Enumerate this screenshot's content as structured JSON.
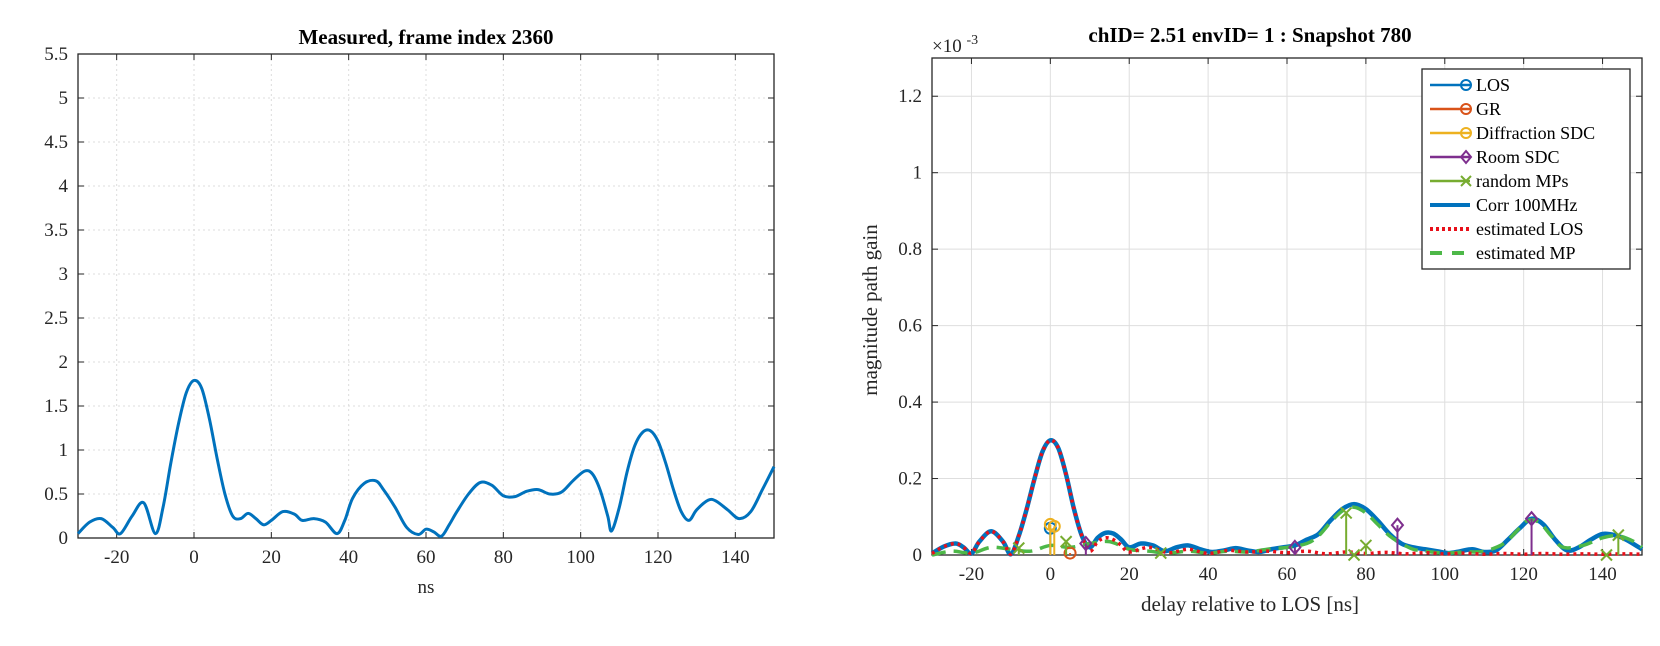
{
  "chart_data": [
    {
      "type": "line",
      "title": "Measured, frame index 2360",
      "xlabel": "ns",
      "ylabel": "",
      "xlim": [
        -30,
        150
      ],
      "ylim": [
        0,
        5.5
      ],
      "xticks": [
        -20,
        0,
        20,
        40,
        60,
        80,
        100,
        120,
        140
      ],
      "xtick_labels": [
        "-20",
        "0",
        "20",
        "40",
        "60",
        "80",
        "100",
        "120",
        "140"
      ],
      "yticks": [
        0,
        0.5,
        1,
        1.5,
        2,
        2.5,
        3,
        3.5,
        4,
        4.5,
        5,
        5.5
      ],
      "ytick_labels": [
        "0",
        "0.5",
        "1",
        "1.5",
        "2",
        "2.5",
        "3",
        "3.5",
        "4",
        "4.5",
        "5",
        "5.5"
      ],
      "grid": true,
      "colors": {
        "line": "#0072BD",
        "grid": "#dcdcdc",
        "axis": "#262626"
      },
      "series": [
        {
          "x": [
            -30,
            -27,
            -24,
            -21,
            -19,
            -16,
            -13,
            -10,
            -8,
            -6,
            -4,
            -2,
            0,
            2,
            4,
            6,
            8,
            10,
            12,
            14,
            16,
            18,
            20,
            23,
            26,
            28,
            31,
            34,
            37,
            39,
            41,
            44,
            47,
            49,
            52,
            55,
            58,
            60,
            62,
            64,
            66,
            68,
            71,
            74,
            77,
            80,
            83,
            86,
            89,
            92,
            95,
            98,
            101,
            103,
            105,
            107,
            108,
            110,
            112,
            114,
            116,
            118,
            120,
            122,
            124,
            126,
            128,
            130,
            133,
            135,
            138,
            141,
            144,
            147,
            150
          ],
          "y": [
            0.05,
            0.18,
            0.22,
            0.12,
            0.05,
            0.25,
            0.4,
            0.05,
            0.35,
            0.85,
            1.3,
            1.65,
            1.79,
            1.7,
            1.35,
            0.9,
            0.5,
            0.25,
            0.22,
            0.28,
            0.22,
            0.15,
            0.2,
            0.3,
            0.27,
            0.2,
            0.22,
            0.18,
            0.05,
            0.2,
            0.45,
            0.62,
            0.65,
            0.55,
            0.35,
            0.12,
            0.04,
            0.1,
            0.07,
            0.02,
            0.15,
            0.3,
            0.5,
            0.63,
            0.6,
            0.48,
            0.47,
            0.53,
            0.55,
            0.5,
            0.52,
            0.65,
            0.76,
            0.73,
            0.55,
            0.25,
            0.08,
            0.35,
            0.75,
            1.05,
            1.2,
            1.22,
            1.1,
            0.85,
            0.55,
            0.3,
            0.2,
            0.32,
            0.43,
            0.42,
            0.32,
            0.22,
            0.3,
            0.55,
            0.81
          ]
        }
      ]
    },
    {
      "type": "line",
      "title": "chID= 2.51 envID= 1 : Snapshot 780",
      "xlabel": "delay relative to LOS [ns]",
      "ylabel": "magnitude path gain",
      "y_exponent_label": "×10",
      "y_exponent_power": "-3",
      "y_scale": "1e-3",
      "xlim": [
        -30,
        150
      ],
      "ylim": [
        0,
        1.3
      ],
      "xticks": [
        -20,
        0,
        20,
        40,
        60,
        80,
        100,
        120,
        140
      ],
      "xtick_labels": [
        "-20",
        "0",
        "20",
        "40",
        "60",
        "80",
        "100",
        "120",
        "140"
      ],
      "yticks": [
        0,
        0.2,
        0.4,
        0.6,
        0.8,
        1,
        1.2
      ],
      "ytick_labels": [
        "0",
        "0.2",
        "0.4",
        "0.6",
        "0.8",
        "1",
        "1.2"
      ],
      "grid": true,
      "legend": {
        "placement": "top-right",
        "entries": [
          {
            "label": "LOS",
            "color": "#0072BD",
            "marker": "o"
          },
          {
            "label": "GR",
            "color": "#D95319",
            "marker": "o"
          },
          {
            "label": "Diffraction SDC",
            "color": "#EDB120",
            "marker": "o"
          },
          {
            "label": "Room SDC",
            "color": "#7E2F8E",
            "marker": "diamond"
          },
          {
            "label": "random MPs",
            "color": "#77AC30",
            "marker": "x"
          },
          {
            "label": "Corr 100MHz",
            "color": "#0072BD",
            "style": "solid-thick"
          },
          {
            "label": "estimated LOS",
            "color": "#E8101A",
            "style": "dotted"
          },
          {
            "label": "estimated MP",
            "color": "#4DB848",
            "style": "dashed"
          }
        ]
      },
      "corr_curve": {
        "name": "Corr 100MHz",
        "color": "#0072BD",
        "x": [
          -30,
          -27,
          -24,
          -22,
          -20,
          -18,
          -15,
          -12,
          -10,
          -8,
          -6,
          -4,
          -2,
          0,
          2,
          4,
          6,
          8,
          10,
          12,
          14,
          16,
          18,
          20,
          23,
          26,
          29,
          32,
          35,
          38,
          41,
          44,
          47,
          50,
          53,
          56,
          59,
          62,
          65,
          68,
          71,
          74,
          77,
          80,
          83,
          86,
          89,
          92,
          95,
          98,
          101,
          104,
          107,
          110,
          113,
          116,
          119,
          122,
          125,
          128,
          131,
          134,
          137,
          140,
          143,
          146,
          150
        ],
        "y": [
          0.004,
          0.022,
          0.03,
          0.02,
          0.004,
          0.035,
          0.062,
          0.035,
          0.002,
          0.05,
          0.12,
          0.2,
          0.27,
          0.3,
          0.28,
          0.21,
          0.12,
          0.05,
          0.02,
          0.045,
          0.058,
          0.056,
          0.04,
          0.02,
          0.03,
          0.025,
          0.01,
          0.02,
          0.025,
          0.015,
          0.008,
          0.012,
          0.018,
          0.012,
          0.008,
          0.015,
          0.02,
          0.025,
          0.04,
          0.055,
          0.09,
          0.12,
          0.133,
          0.12,
          0.09,
          0.055,
          0.03,
          0.02,
          0.015,
          0.01,
          0.005,
          0.01,
          0.015,
          0.008,
          0.012,
          0.04,
          0.07,
          0.095,
          0.08,
          0.04,
          0.012,
          0.02,
          0.04,
          0.055,
          0.052,
          0.04,
          0.015
        ]
      },
      "estimated_los": {
        "name": "estimated LOS",
        "color": "#E8101A",
        "x": [
          -30,
          -27,
          -24,
          -22,
          -20,
          -18,
          -15,
          -12,
          -10,
          -8,
          -6,
          -4,
          -2,
          0,
          2,
          4,
          6,
          8,
          10,
          12,
          14,
          16,
          18,
          20,
          25,
          30,
          35,
          40,
          45,
          50,
          55,
          60,
          65,
          70,
          75,
          80,
          85,
          90,
          95,
          100,
          105,
          110,
          115,
          120,
          125,
          130,
          135,
          140,
          145,
          150
        ],
        "y": [
          0.004,
          0.022,
          0.03,
          0.02,
          0.004,
          0.035,
          0.062,
          0.035,
          0.002,
          0.05,
          0.12,
          0.2,
          0.27,
          0.3,
          0.28,
          0.21,
          0.12,
          0.05,
          0.01,
          0.035,
          0.045,
          0.04,
          0.025,
          0.008,
          0.02,
          0.006,
          0.015,
          0.004,
          0.012,
          0.008,
          0.01,
          0.006,
          0.01,
          0.003,
          0.008,
          0.004,
          0.007,
          0.003,
          0.006,
          0.003,
          0.005,
          0.002,
          0.004,
          0.002,
          0.004,
          0.002,
          0.003,
          0.002,
          0.003,
          0.002
        ]
      },
      "estimated_mp": {
        "name": "estimated MP",
        "color": "#4DB848",
        "x": [
          -30,
          -25,
          -20,
          -15,
          -10,
          -5,
          0,
          5,
          10,
          15,
          20,
          25,
          30,
          35,
          40,
          45,
          50,
          55,
          60,
          65,
          68,
          71,
          74,
          77,
          80,
          83,
          86,
          89,
          92,
          95,
          100,
          105,
          110,
          115,
          118,
          121,
          124,
          127,
          130,
          135,
          140,
          144,
          148,
          150
        ],
        "y": [
          0.0,
          0.01,
          0.005,
          0.02,
          0.015,
          0.01,
          0.025,
          0.02,
          0.03,
          0.035,
          0.015,
          0.01,
          0.005,
          0.01,
          0.005,
          0.01,
          0.008,
          0.015,
          0.02,
          0.03,
          0.05,
          0.085,
          0.115,
          0.125,
          0.11,
          0.08,
          0.05,
          0.03,
          0.015,
          0.01,
          0.005,
          0.008,
          0.01,
          0.03,
          0.06,
          0.09,
          0.085,
          0.05,
          0.02,
          0.025,
          0.045,
          0.05,
          0.035,
          0.02
        ]
      },
      "stems": [
        {
          "group": "LOS",
          "color": "#0072BD",
          "marker": "o",
          "x": [
            0
          ],
          "y": [
            0.07
          ]
        },
        {
          "group": "GR",
          "color": "#D95319",
          "marker": "o",
          "x": [
            5
          ],
          "y": [
            0.005
          ]
        },
        {
          "group": "Diffraction SDC",
          "color": "#EDB120",
          "marker": "o",
          "x": [
            0,
            1
          ],
          "y": [
            0.08,
            0.075
          ]
        },
        {
          "group": "Room SDC",
          "color": "#7E2F8E",
          "marker": "diamond",
          "x": [
            9,
            62,
            88,
            122
          ],
          "y": [
            0.03,
            0.02,
            0.078,
            0.095
          ]
        },
        {
          "group": "random MPs",
          "color": "#77AC30",
          "marker": "x",
          "x": [
            -8,
            4,
            28,
            75,
            77,
            80,
            141,
            144
          ],
          "y": [
            0.018,
            0.035,
            0.005,
            0.11,
            0.0,
            0.025,
            0.0,
            0.052
          ]
        }
      ]
    }
  ]
}
